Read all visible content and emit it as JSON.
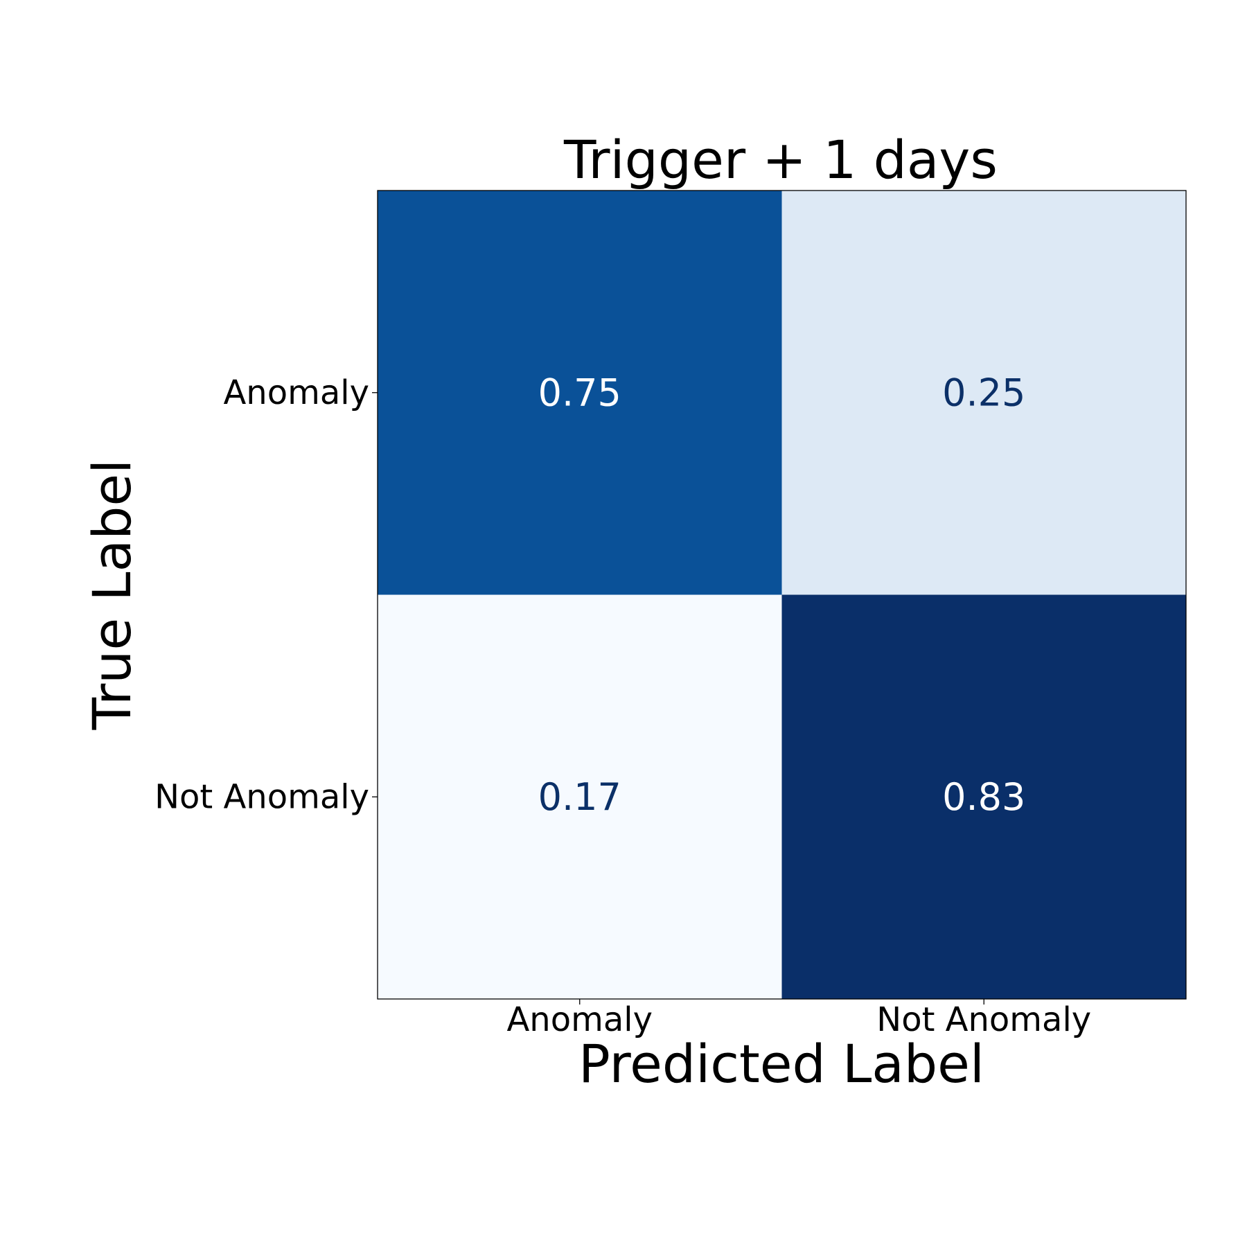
{
  "chart_data": {
    "type": "heatmap",
    "title": "Trigger + 1 days",
    "xlabel": "Predicted Label",
    "ylabel": "True Label",
    "x_categories": [
      "Anomaly",
      "Not Anomaly"
    ],
    "y_categories": [
      "Anomaly",
      "Not Anomaly"
    ],
    "values": [
      [
        0.75,
        0.25
      ],
      [
        0.17,
        0.83
      ]
    ],
    "value_labels": [
      [
        "0.75",
        "0.25"
      ],
      [
        "0.17",
        "0.83"
      ]
    ],
    "colormap": "Blues",
    "colors": {
      "cell_fill": [
        [
          "#0a5198",
          "#dde9f5"
        ],
        [
          "#f6faff",
          "#0a2f69"
        ]
      ],
      "dark_text": "#0b3068",
      "light_text": "#ffffff"
    }
  }
}
